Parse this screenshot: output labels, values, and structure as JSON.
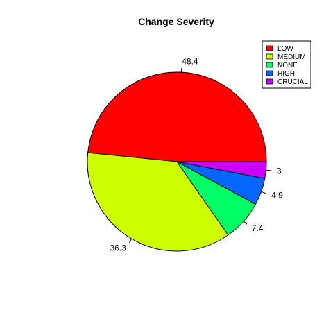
{
  "chart_data": {
    "type": "pie",
    "title": "Change Severity",
    "start_angle_deg": 0,
    "direction": "counterclockwise",
    "slices": [
      {
        "name": "LOW",
        "value": 48.4,
        "label": "48.4",
        "color": "#FF0000"
      },
      {
        "name": "MEDIUM",
        "value": 36.3,
        "label": "36.3",
        "color": "#CCFF00"
      },
      {
        "name": "NONE",
        "value": 7.4,
        "label": "7.4",
        "color": "#00FF66"
      },
      {
        "name": "HIGH",
        "value": 4.9,
        "label": "4.9",
        "color": "#0066FF"
      },
      {
        "name": "CRUCIAL",
        "value": 3,
        "label": "3",
        "color": "#CC00FF"
      }
    ],
    "legend": {
      "position": "top-right",
      "entries": [
        "LOW",
        "MEDIUM",
        "NONE",
        "HIGH",
        "CRUCIAL"
      ]
    }
  }
}
